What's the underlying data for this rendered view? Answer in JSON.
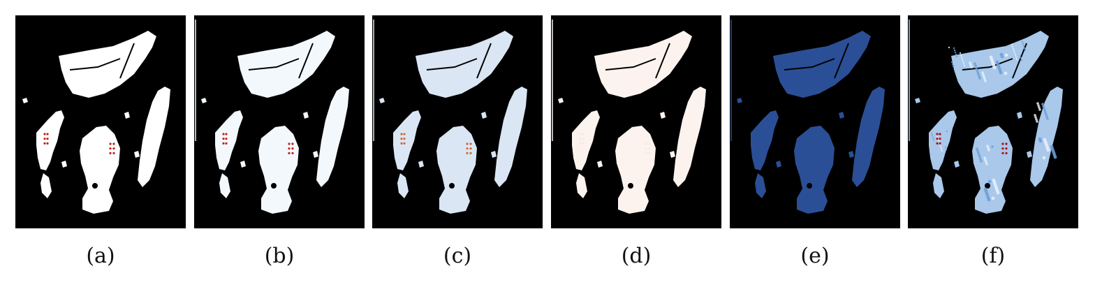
{
  "figure": {
    "panels": [
      {
        "id": "a",
        "label": "(a)",
        "fill": "#ffffff",
        "texture": "none",
        "edge_lines": false,
        "hotspot": "#c02418"
      },
      {
        "id": "b",
        "label": "(b)",
        "fill": "#f3f8fd",
        "texture": "none",
        "edge_lines": true,
        "hotspot": "#c02418"
      },
      {
        "id": "c",
        "label": "(c)",
        "fill": "#dbe6f4",
        "texture": "none",
        "edge_lines": true,
        "hotspot": "#d06a3c"
      },
      {
        "id": "d",
        "label": "(d)",
        "fill": "#fcf3ee",
        "texture": "none",
        "edge_lines": true,
        "hotspot": "#fbe8dc"
      },
      {
        "id": "e",
        "label": "(e)",
        "fill": "#2b4f96",
        "texture": "none",
        "edge_lines": true,
        "hotspot": "#2b4f96"
      },
      {
        "id": "f",
        "label": "(f)",
        "fill": "#a9c8ea",
        "texture": "blue-mottled",
        "edge_lines": true,
        "hotspot": "#a8141c"
      }
    ],
    "colors": {
      "background": "#000000",
      "page": "#ffffff"
    }
  }
}
